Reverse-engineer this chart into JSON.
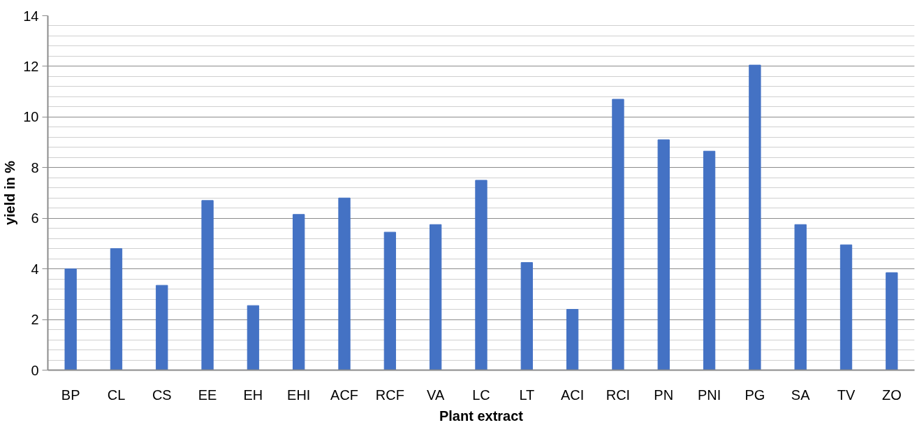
{
  "chart_data": {
    "type": "bar",
    "xlabel": "Plant extract",
    "ylabel": "yield in %",
    "categories": [
      "BP",
      "CL",
      "CS",
      "EE",
      "EH",
      "EHI",
      "ACF",
      "RCF",
      "VA",
      "LC",
      "LT",
      "ACI",
      "RCI",
      "PN",
      "PNI",
      "PG",
      "SA",
      "TV",
      "ZO"
    ],
    "values": [
      4.0,
      4.8,
      3.35,
      6.7,
      2.55,
      6.15,
      6.8,
      5.45,
      5.75,
      7.5,
      4.25,
      2.4,
      10.7,
      9.1,
      8.65,
      12.05,
      5.75,
      4.95,
      3.85
    ],
    "color": "#4472c4",
    "ylim": [
      0,
      14
    ],
    "yticks": [
      0,
      2,
      4,
      6,
      8,
      10,
      12,
      14
    ],
    "grid": "y"
  }
}
